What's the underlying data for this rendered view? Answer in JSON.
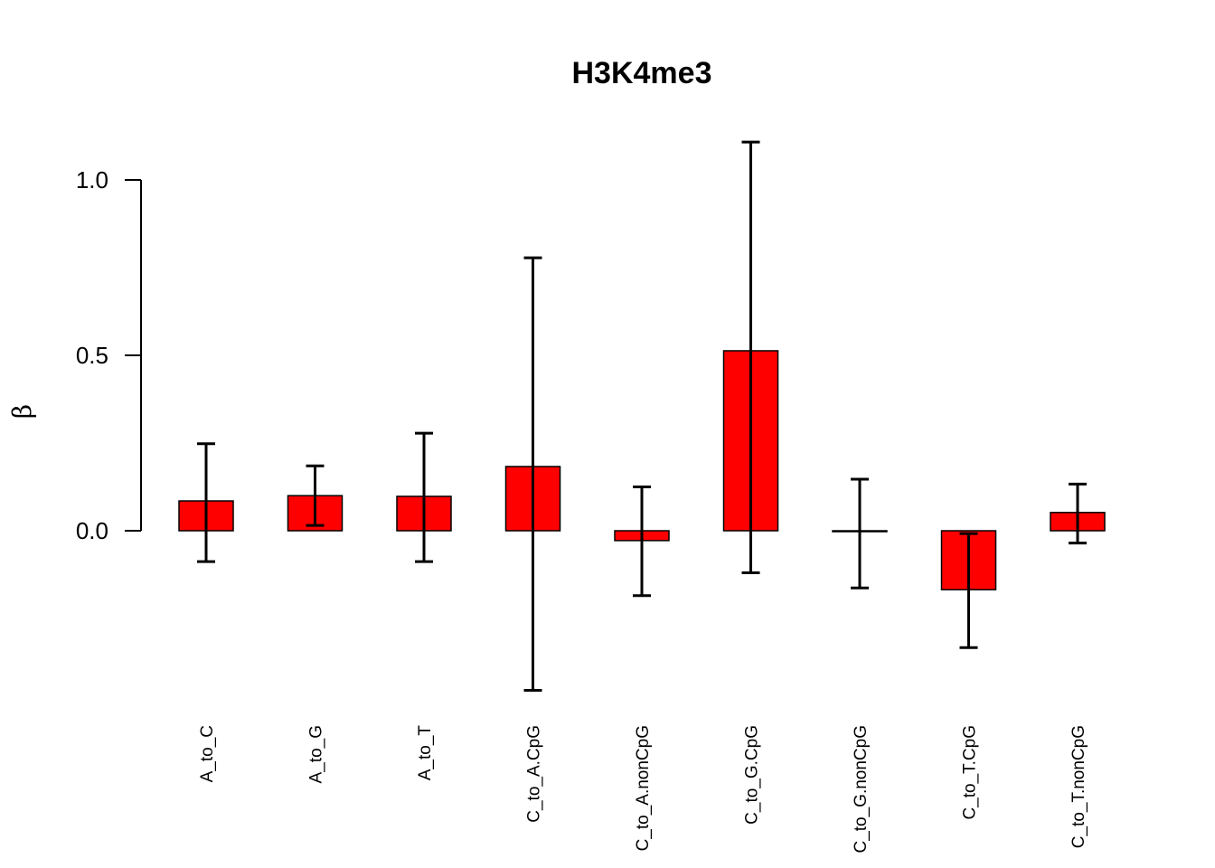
{
  "chart_data": {
    "type": "bar",
    "title": "H3K4me3",
    "ylabel": "β",
    "xlabel": "",
    "ylim": [
      -0.5,
      1.15
    ],
    "yticks": [
      "0.0",
      "0.5",
      "1.0"
    ],
    "bar_color": "#ff0000",
    "categories": [
      "A_to_C",
      "A_to_G",
      "A_to_T",
      "C_to_A.CpG",
      "C_to_A.nonCpG",
      "C_to_G.CpG",
      "C_to_G.nonCpG",
      "C_to_T.CpG",
      "C_to_T.nonCpG"
    ],
    "values": [
      0.085,
      0.1,
      0.098,
      0.183,
      -0.028,
      0.513,
      0.0,
      -0.168,
      0.052
    ],
    "error_low": [
      -0.088,
      0.015,
      -0.088,
      -0.455,
      -0.185,
      -0.12,
      -0.163,
      -0.333,
      -0.035
    ],
    "error_high": [
      0.248,
      0.185,
      0.278,
      0.778,
      0.125,
      1.108,
      0.147,
      -0.008,
      0.133
    ]
  }
}
